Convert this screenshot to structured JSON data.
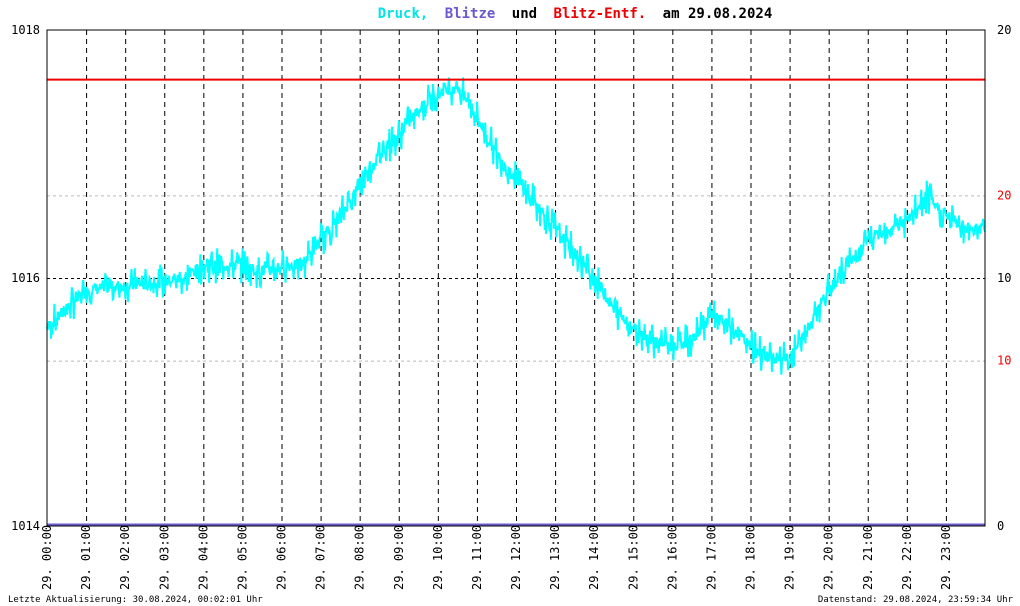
{
  "chart_data": {
    "type": "line",
    "title": {
      "part1": "Druck,",
      "part2": "Blitze",
      "part3": "und",
      "part4": "Blitz-Entf.",
      "part5": "am 29.08.2024"
    },
    "colors": {
      "pressure": "#00ffff",
      "lightning": "#6a5acd",
      "lightning_dist": "#ee0000",
      "text": "#000000"
    },
    "left_axis": {
      "range": [
        1014,
        1018
      ],
      "ticks": [
        "1014",
        "1016",
        "1018"
      ]
    },
    "right_axis_count": {
      "range": [
        0,
        20
      ],
      "ticks": [
        "0",
        "10",
        "20"
      ]
    },
    "right_axis_dist": {
      "range": [
        0,
        30
      ],
      "ticks": [
        "10",
        "20"
      ],
      "tick_values": [
        10,
        20
      ]
    },
    "x_axis": {
      "range": [
        0,
        24
      ],
      "ticks": [
        "29. 00:00",
        "29. 01:00",
        "29. 02:00",
        "29. 03:00",
        "29. 04:00",
        "29. 05:00",
        "29. 06:00",
        "29. 07:00",
        "29. 08:00",
        "29. 09:00",
        "29. 10:00",
        "29. 11:00",
        "29. 12:00",
        "29. 13:00",
        "29. 14:00",
        "29. 15:00",
        "29. 16:00",
        "29. 17:00",
        "29. 18:00",
        "29. 19:00",
        "29. 20:00",
        "29. 21:00",
        "29. 22:00",
        "29. 23:00"
      ]
    },
    "series": [
      {
        "key": "pressure",
        "x": [
          0,
          0.5,
          1,
          1.5,
          2,
          2.5,
          3,
          3.5,
          4,
          4.5,
          5,
          5.5,
          6,
          6.5,
          7,
          7.5,
          8,
          8.5,
          9,
          9.5,
          10,
          10.5,
          11,
          11.5,
          12,
          12.5,
          13,
          13.5,
          14,
          14.5,
          15,
          15.5,
          16,
          16.5,
          17,
          17.5,
          18,
          18.5,
          19,
          19.5,
          20,
          20.5,
          21,
          21.5,
          22,
          22.5,
          23,
          23.5,
          24
        ],
        "y": [
          1015.6,
          1015.75,
          1015.9,
          1015.92,
          1015.94,
          1015.95,
          1015.97,
          1016.0,
          1016.1,
          1016.1,
          1016.1,
          1016.05,
          1016.1,
          1016.1,
          1016.3,
          1016.5,
          1016.75,
          1017.0,
          1017.15,
          1017.35,
          1017.5,
          1017.55,
          1017.3,
          1017.0,
          1016.8,
          1016.6,
          1016.4,
          1016.2,
          1016.0,
          1015.75,
          1015.6,
          1015.5,
          1015.45,
          1015.5,
          1015.7,
          1015.6,
          1015.45,
          1015.35,
          1015.35,
          1015.6,
          1015.9,
          1016.1,
          1016.3,
          1016.4,
          1016.45,
          1016.65,
          1016.5,
          1016.4,
          1016.4
        ],
        "noise": 0.12
      },
      {
        "key": "lightning_dist",
        "y_value": 27
      },
      {
        "key": "lightning",
        "y_value": 0
      }
    ],
    "grid": true
  },
  "footer": {
    "left": "Letzte Aktualisierung: 30.08.2024, 00:02:01 Uhr",
    "right": "Datenstand: 29.08.2024, 23:59:34 Uhr"
  }
}
